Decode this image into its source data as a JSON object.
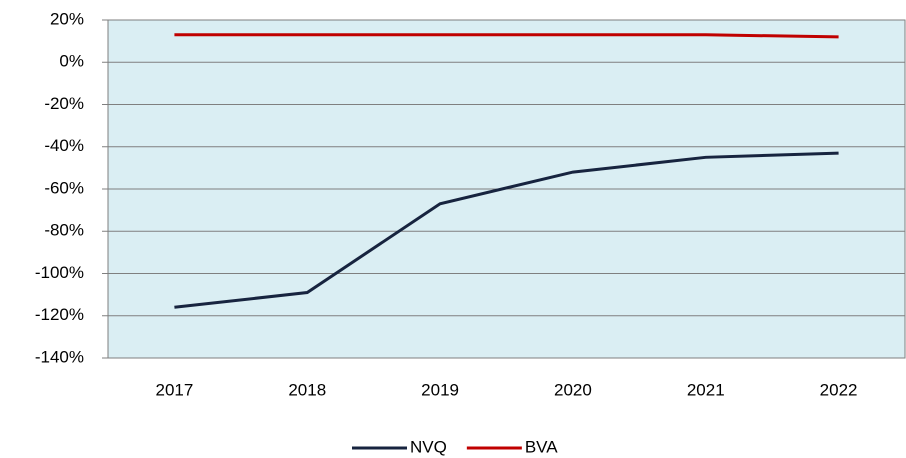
{
  "chart_data": {
    "type": "line",
    "categories": [
      "2017",
      "2018",
      "2019",
      "2020",
      "2021",
      "2022"
    ],
    "series": [
      {
        "name": "NVQ",
        "color": "#17243f",
        "values": [
          -116,
          -109,
          -67,
          -52,
          -45,
          -43
        ]
      },
      {
        "name": "BVA",
        "color": "#c00000",
        "values": [
          13,
          13,
          13,
          13,
          13,
          12
        ]
      }
    ],
    "ylim": [
      -140,
      20
    ],
    "yticks": [
      {
        "value": -140,
        "label": "-140%"
      },
      {
        "value": -120,
        "label": "-120%"
      },
      {
        "value": -100,
        "label": "-100%"
      },
      {
        "value": -80,
        "label": "-80%"
      },
      {
        "value": -60,
        "label": "-60%"
      },
      {
        "value": -40,
        "label": "-40%"
      },
      {
        "value": -20,
        "label": "-20%"
      },
      {
        "value": 0,
        "label": "0%"
      },
      {
        "value": 20,
        "label": "20%"
      }
    ],
    "grid": true,
    "legend": "bottom"
  }
}
